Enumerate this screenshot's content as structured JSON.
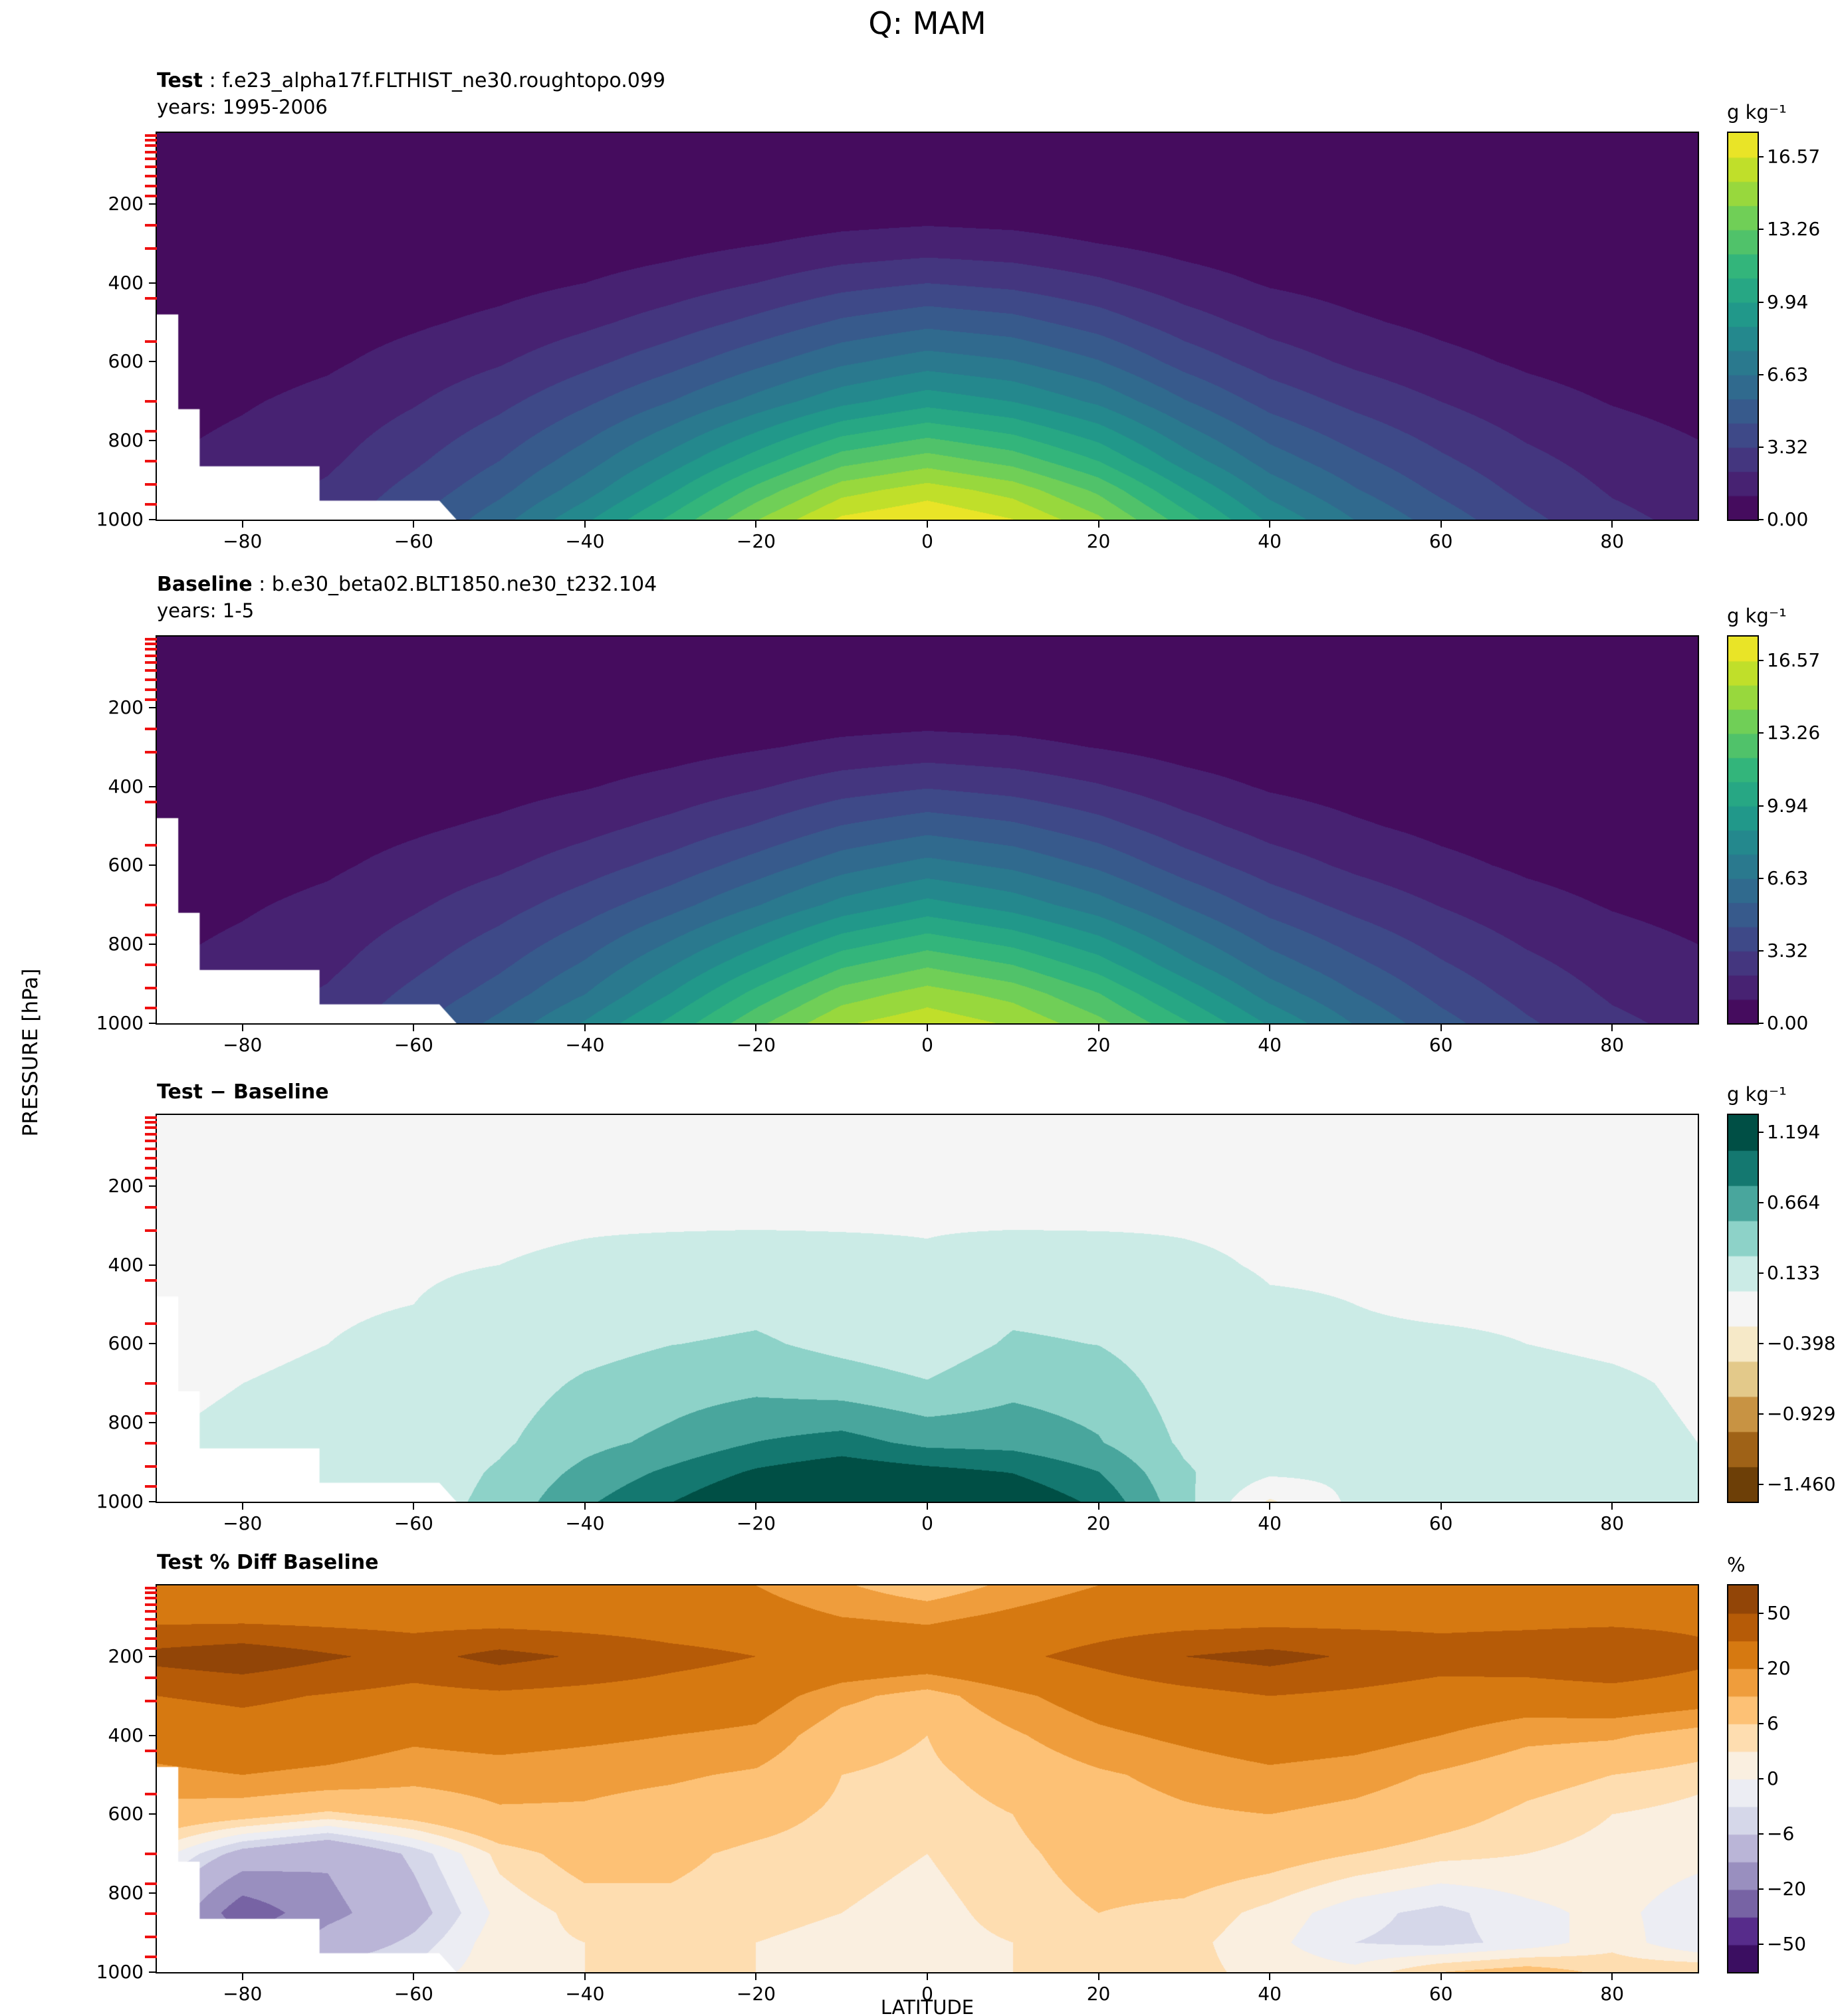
{
  "title": "Q: MAM",
  "ylabel": "PRESSURE [hPa]",
  "xlabel": "LATITUDE",
  "colors": {
    "background": "#ffffff",
    "frame": "#000000",
    "text": "#000000",
    "mask": "#ffffff",
    "red_tick": "#ee1111",
    "viridis": [
      "#440154",
      "#482878",
      "#3e4a89",
      "#31688e",
      "#26828e",
      "#1f9e89",
      "#35b779",
      "#6ece58",
      "#b5de2b",
      "#fde725"
    ],
    "brbg": [
      "#543005",
      "#8c510a",
      "#bf812d",
      "#dfc27d",
      "#f6e8c3",
      "#f5f5f5",
      "#c7eae5",
      "#80cdc1",
      "#35978f",
      "#01665e",
      "#003c30"
    ],
    "puor_r": [
      "#2d004b",
      "#542788",
      "#8073ac",
      "#b2abd2",
      "#d8daeb",
      "#f7f7f7",
      "#fee0b6",
      "#fdb863",
      "#e08214",
      "#b35806",
      "#7f3b08"
    ]
  },
  "axes": {
    "lat_range": [
      -90,
      90
    ],
    "pressure_range_hPa": [
      20,
      1000
    ],
    "x_ticks": {
      "values": [
        -80,
        -60,
        -40,
        -20,
        0,
        20,
        40,
        60,
        80
      ],
      "labels": [
        "−80",
        "−60",
        "−40",
        "−20",
        "0",
        "20",
        "40",
        "60",
        "80"
      ]
    },
    "y_ticks": {
      "values": [
        200,
        400,
        600,
        800,
        1000
      ],
      "labels": [
        "200",
        "400",
        "600",
        "800",
        "1000"
      ]
    },
    "red_model_level_ticks_hPa": [
      26,
      38,
      52,
      68,
      86,
      106,
      130,
      155,
      180,
      254,
      313,
      439,
      549,
      700,
      776,
      852,
      911,
      961
    ]
  },
  "panels": [
    {
      "key": "test",
      "label_bold": "Test",
      "label_rest": " : f.e23_alpha17f.FLTHIST_ne30.roughtopo.099",
      "years": "years: 1995-2006",
      "cbar_label": "g kg⁻¹",
      "cmap": "viridis",
      "scale": {
        "min": 0,
        "max": 17.676,
        "nbins": 16
      },
      "cbar_ticks": {
        "values": [
          16.57,
          13.26,
          9.94,
          6.63,
          3.32,
          0
        ],
        "labels": [
          "16.57",
          "13.26",
          "9.94",
          "6.63",
          "3.32",
          "0.00"
        ]
      }
    },
    {
      "key": "baseline",
      "label_bold": "Baseline",
      "label_rest": " : b.e30_beta02.BLT1850.ne30_t232.104",
      "years": "years: 1-5",
      "cbar_label": "g kg⁻¹",
      "cmap": "viridis",
      "scale": {
        "min": 0,
        "max": 17.676,
        "nbins": 16
      },
      "cbar_ticks": {
        "values": [
          16.57,
          13.26,
          9.94,
          6.63,
          3.32,
          0
        ],
        "labels": [
          "16.57",
          "13.26",
          "9.94",
          "6.63",
          "3.32",
          "0.00"
        ]
      }
    },
    {
      "key": "diff_test_minus_baseline",
      "label_bold": "Test − Baseline",
      "label_rest": "",
      "years": "",
      "cbar_label": "g kg⁻¹",
      "cmap": "brbg",
      "scale": {
        "min": -1.5918,
        "max": 1.3266,
        "nbins": 11
      },
      "cbar_ticks": {
        "values": [
          1.194,
          0.664,
          0.133,
          -0.398,
          -0.929,
          -1.46
        ],
        "labels": [
          "1.194",
          "0.664",
          "0.133",
          "−0.398",
          "−0.929",
          "−1.460"
        ]
      }
    },
    {
      "key": "pct_diff",
      "label_bold": "Test % Diff Baseline",
      "label_rest": "",
      "years": "",
      "cbar_label": "%",
      "cmap": "puor_r",
      "scale": {
        "bounds": [
          -75,
          -50,
          -35,
          -20,
          -13,
          -6,
          -3,
          0,
          3,
          6,
          13,
          20,
          35,
          50,
          75
        ]
      },
      "cbar_ticks": {
        "values": [
          50,
          20,
          6,
          0,
          -6,
          -20,
          -50
        ],
        "labels": [
          "50",
          "20",
          "6",
          "0",
          "−6",
          "−20",
          "−50"
        ]
      }
    }
  ],
  "chart_data": {
    "type": "heatmap",
    "title": "Q: MAM",
    "xlabel": "LATITUDE",
    "ylabel": "PRESSURE [hPa]",
    "x_lats": [
      -90,
      -80,
      -70,
      -60,
      -50,
      -40,
      -30,
      -20,
      -10,
      0,
      10,
      20,
      30,
      40,
      50,
      60,
      70,
      80,
      90
    ],
    "y_pressures_hPa": [
      20,
      100,
      200,
      300,
      400,
      500,
      600,
      700,
      850,
      925,
      1000
    ],
    "units": {
      "test": "g kg-1",
      "baseline": "g kg-1",
      "diff_test_minus_baseline": "g kg-1",
      "pct_diff": "%"
    },
    "test": [
      [
        0.002,
        0.002,
        0.002,
        0.002,
        0.002,
        0.002,
        0.002,
        0.002,
        0.002,
        0.002,
        0.002,
        0.002,
        0.002,
        0.002,
        0.002,
        0.002,
        0.002,
        0.002,
        0.002
      ],
      [
        0.003,
        0.003,
        0.004,
        0.005,
        0.007,
        0.01,
        0.015,
        0.025,
        0.035,
        0.04,
        0.035,
        0.025,
        0.015,
        0.009,
        0.006,
        0.004,
        0.003,
        0.003,
        0.003
      ],
      [
        0.01,
        0.015,
        0.02,
        0.04,
        0.06,
        0.1,
        0.18,
        0.3,
        0.42,
        0.48,
        0.42,
        0.3,
        0.18,
        0.09,
        0.05,
        0.03,
        0.02,
        0.015,
        0.01
      ],
      [
        0.05,
        0.07,
        0.1,
        0.18,
        0.28,
        0.45,
        0.7,
        1.05,
        1.4,
        1.6,
        1.45,
        1.1,
        0.7,
        0.4,
        0.25,
        0.15,
        0.1,
        0.07,
        0.05
      ],
      [
        0.12,
        0.2,
        0.3,
        0.5,
        0.75,
        1.1,
        1.6,
        2.2,
        2.9,
        3.3,
        3.0,
        2.4,
        1.6,
        1.0,
        0.7,
        0.45,
        0.3,
        0.2,
        0.12
      ],
      [
        0.25,
        0.4,
        0.6,
        0.95,
        1.35,
        1.95,
        2.7,
        3.6,
        4.6,
        5.2,
        4.8,
        3.9,
        2.7,
        1.8,
        1.25,
        0.85,
        0.55,
        0.35,
        0.25
      ],
      [
        0.45,
        0.65,
        0.95,
        1.5,
        2.1,
        3.0,
        4.0,
        5.2,
        6.4,
        7.2,
        6.7,
        5.6,
        4.0,
        2.8,
        2.0,
        1.4,
        0.95,
        0.65,
        0.45
      ],
      [
        0.7,
        1.0,
        1.4,
        2.1,
        3.0,
        4.2,
        5.5,
        7.0,
        8.5,
        9.5,
        8.8,
        7.5,
        5.6,
        4.0,
        3.0,
        2.2,
        1.5,
        1.05,
        0.75
      ],
      [
        1.05,
        1.45,
        2.0,
        3.1,
        4.4,
        6.1,
        8.2,
        10.5,
        12.8,
        13.8,
        12.8,
        11.0,
        8.3,
        6.1,
        4.7,
        3.5,
        2.5,
        1.75,
        1.3
      ],
      [
        1.3,
        1.7,
        2.4,
        3.7,
        5.2,
        7.2,
        9.7,
        12.5,
        15.0,
        16.0,
        15.0,
        13.0,
        10.0,
        7.3,
        5.6,
        4.2,
        3.0,
        2.1,
        1.6
      ],
      [
        1.5,
        2.0,
        2.8,
        4.3,
        6.2,
        8.6,
        11.3,
        14.3,
        16.8,
        17.6,
        16.6,
        14.6,
        11.6,
        8.6,
        6.6,
        5.0,
        3.6,
        2.5,
        1.9
      ]
    ],
    "baseline": [
      [
        0.002,
        0.002,
        0.002,
        0.002,
        0.002,
        0.002,
        0.002,
        0.002,
        0.002,
        0.002,
        0.002,
        0.002,
        0.002,
        0.002,
        0.002,
        0.002,
        0.002,
        0.002,
        0.002
      ],
      [
        0.003,
        0.003,
        0.004,
        0.005,
        0.007,
        0.01,
        0.015,
        0.025,
        0.035,
        0.04,
        0.035,
        0.025,
        0.015,
        0.009,
        0.006,
        0.004,
        0.003,
        0.003,
        0.003
      ],
      [
        0.01,
        0.015,
        0.02,
        0.04,
        0.06,
        0.1,
        0.17,
        0.28,
        0.4,
        0.46,
        0.4,
        0.29,
        0.17,
        0.09,
        0.05,
        0.03,
        0.02,
        0.015,
        0.01
      ],
      [
        0.05,
        0.07,
        0.1,
        0.17,
        0.26,
        0.42,
        0.66,
        1.0,
        1.35,
        1.55,
        1.4,
        1.06,
        0.67,
        0.39,
        0.24,
        0.15,
        0.1,
        0.07,
        0.05
      ],
      [
        0.12,
        0.2,
        0.29,
        0.48,
        0.71,
        1.03,
        1.5,
        2.08,
        2.8,
        3.22,
        2.88,
        2.3,
        1.55,
        0.99,
        0.69,
        0.44,
        0.29,
        0.2,
        0.12
      ],
      [
        0.25,
        0.39,
        0.59,
        0.92,
        1.29,
        1.83,
        2.52,
        3.4,
        4.45,
        5.08,
        4.6,
        3.72,
        2.62,
        1.76,
        1.23,
        0.83,
        0.54,
        0.34,
        0.25
      ],
      [
        0.45,
        0.64,
        0.93,
        1.46,
        2.0,
        2.8,
        3.72,
        4.9,
        6.18,
        7.02,
        6.4,
        5.32,
        3.88,
        2.77,
        1.98,
        1.37,
        0.93,
        0.64,
        0.45
      ],
      [
        0.69,
        0.98,
        1.37,
        2.04,
        2.85,
        3.9,
        5.1,
        6.55,
        8.1,
        9.2,
        8.35,
        7.1,
        5.45,
        3.96,
        2.97,
        2.16,
        1.47,
        1.03,
        0.74
      ],
      [
        1.04,
        1.43,
        1.96,
        3.02,
        4.18,
        5.65,
        7.6,
        9.7,
        11.9,
        13.05,
        12.1,
        10.45,
        8.08,
        6.05,
        4.66,
        3.42,
        2.45,
        1.72,
        1.29
      ],
      [
        1.28,
        1.67,
        2.35,
        3.6,
        4.9,
        6.6,
        8.85,
        11.4,
        13.75,
        14.85,
        13.95,
        12.2,
        9.7,
        7.25,
        5.55,
        4.08,
        2.92,
        2.06,
        1.58
      ],
      [
        1.48,
        1.97,
        2.74,
        4.18,
        5.85,
        7.85,
        10.25,
        12.95,
        15.32,
        16.18,
        15.3,
        13.6,
        11.25,
        8.68,
        6.54,
        4.82,
        3.48,
        2.45,
        1.88
      ]
    ],
    "diff_test_minus_baseline": [
      [
        -0.02,
        -0.02,
        -0.02,
        -0.02,
        -0.02,
        -0.02,
        -0.02,
        -0.02,
        -0.02,
        -0.02,
        -0.02,
        -0.02,
        -0.02,
        -0.02,
        -0.02,
        -0.02,
        -0.02,
        -0.02,
        -0.02
      ],
      [
        -0.02,
        -0.02,
        -0.02,
        -0.02,
        -0.02,
        -0.02,
        -0.02,
        -0.02,
        -0.02,
        -0.02,
        -0.02,
        -0.02,
        -0.02,
        -0.02,
        -0.02,
        -0.02,
        -0.02,
        -0.02,
        -0.02
      ],
      [
        -0.02,
        -0.02,
        -0.02,
        -0.02,
        -0.01,
        -0.01,
        -0.01,
        -0.01,
        -0.01,
        -0.01,
        -0.01,
        -0.01,
        -0.01,
        -0.01,
        -0.01,
        -0.02,
        -0.02,
        -0.02,
        -0.02
      ],
      [
        -0.02,
        -0.02,
        -0.02,
        -0.02,
        -0.02,
        -0.01,
        -0.01,
        -0.01,
        -0.01,
        -0.01,
        -0.01,
        -0.01,
        -0.01,
        -0.02,
        -0.02,
        -0.02,
        -0.02,
        -0.02,
        -0.02
      ],
      [
        -0.02,
        -0.02,
        -0.02,
        -0.01,
        0.0,
        0.02,
        0.05,
        0.08,
        0.05,
        0.02,
        0.08,
        0.06,
        0.02,
        -0.01,
        -0.01,
        -0.01,
        -0.02,
        -0.02,
        -0.02
      ],
      [
        -0.02,
        -0.01,
        -0.01,
        0.0,
        0.03,
        0.1,
        0.16,
        0.2,
        0.12,
        0.06,
        0.2,
        0.18,
        0.06,
        0.01,
        0.0,
        -0.01,
        -0.01,
        -0.01,
        -0.02
      ],
      [
        -0.02,
        -0.01,
        0.0,
        0.02,
        0.08,
        0.18,
        0.26,
        0.3,
        0.2,
        0.12,
        0.3,
        0.26,
        0.1,
        0.02,
        0.01,
        0.01,
        0.0,
        -0.01,
        -0.02
      ],
      [
        -0.01,
        0.0,
        0.01,
        0.05,
        0.14,
        0.3,
        0.4,
        0.45,
        0.38,
        0.28,
        0.45,
        0.4,
        0.14,
        0.03,
        0.02,
        0.03,
        0.02,
        0.01,
        -0.01
      ],
      [
        0.0,
        0.01,
        0.03,
        0.08,
        0.22,
        0.45,
        0.6,
        0.8,
        0.9,
        0.72,
        0.7,
        0.55,
        0.22,
        0.05,
        0.04,
        0.08,
        0.05,
        0.02,
        0.0
      ],
      [
        0.01,
        0.02,
        0.05,
        0.1,
        0.3,
        0.6,
        0.85,
        1.1,
        1.25,
        1.15,
        1.05,
        0.8,
        0.3,
        0.05,
        0.05,
        0.12,
        0.08,
        0.04,
        0.01
      ],
      [
        0.02,
        0.03,
        0.06,
        0.12,
        0.35,
        0.75,
        1.05,
        1.35,
        1.48,
        1.42,
        1.3,
        1.0,
        0.35,
        -0.3,
        0.06,
        0.18,
        0.12,
        0.05,
        0.02
      ]
    ],
    "pct_diff": [
      [
        28,
        27,
        26,
        25,
        24,
        23,
        22,
        20,
        14,
        8,
        15,
        20,
        22,
        24,
        25,
        26,
        27,
        28,
        28
      ],
      [
        30,
        30,
        29,
        28,
        27,
        26,
        25,
        24,
        20,
        18,
        22,
        26,
        27,
        28,
        29,
        30,
        30,
        30,
        30
      ],
      [
        55,
        60,
        52,
        45,
        55,
        48,
        40,
        35,
        30,
        28,
        32,
        40,
        50,
        55,
        48,
        42,
        45,
        50,
        40
      ],
      [
        35,
        38,
        34,
        30,
        32,
        30,
        28,
        25,
        15,
        10,
        18,
        25,
        30,
        35,
        32,
        28,
        26,
        28,
        25
      ],
      [
        25,
        28,
        26,
        22,
        24,
        22,
        20,
        18,
        8,
        6,
        12,
        18,
        22,
        26,
        24,
        20,
        15,
        14,
        10
      ],
      [
        18,
        20,
        18,
        15,
        16,
        15,
        14,
        12,
        6,
        5,
        8,
        12,
        15,
        18,
        16,
        12,
        8,
        6,
        4
      ],
      [
        10,
        8,
        5,
        8,
        12,
        12,
        10,
        8,
        5,
        4,
        6,
        10,
        12,
        13,
        11,
        8,
        5,
        3,
        2
      ],
      [
        2,
        -8,
        -12,
        -5,
        4,
        8,
        7,
        5,
        4,
        3,
        5,
        8,
        9,
        8,
        6,
        4,
        3,
        2,
        1
      ],
      [
        -5,
        -25,
        -15,
        -8,
        1,
        4,
        5,
        4,
        3,
        2,
        4,
        6,
        5,
        2,
        -2,
        -4,
        -1,
        1,
        -2
      ],
      [
        -3,
        -18,
        -10,
        -5,
        2,
        3,
        4,
        3,
        2,
        2,
        3,
        5,
        4,
        1,
        -3,
        -4,
        -2,
        2,
        -3
      ],
      [
        1,
        -5,
        -4,
        -2,
        2,
        3,
        4,
        3,
        2,
        2,
        3,
        4,
        4,
        2,
        1,
        6,
        8,
        5,
        6
      ]
    ],
    "topography_mask_polygon_lat_hPa": [
      [
        -90,
        480
      ],
      [
        -87.5,
        480
      ],
      [
        -87.5,
        720
      ],
      [
        -85,
        720
      ],
      [
        -85,
        865
      ],
      [
        -71,
        865
      ],
      [
        -71,
        952
      ],
      [
        -57,
        952
      ],
      [
        -55,
        1000
      ],
      [
        -90,
        1000
      ]
    ]
  }
}
